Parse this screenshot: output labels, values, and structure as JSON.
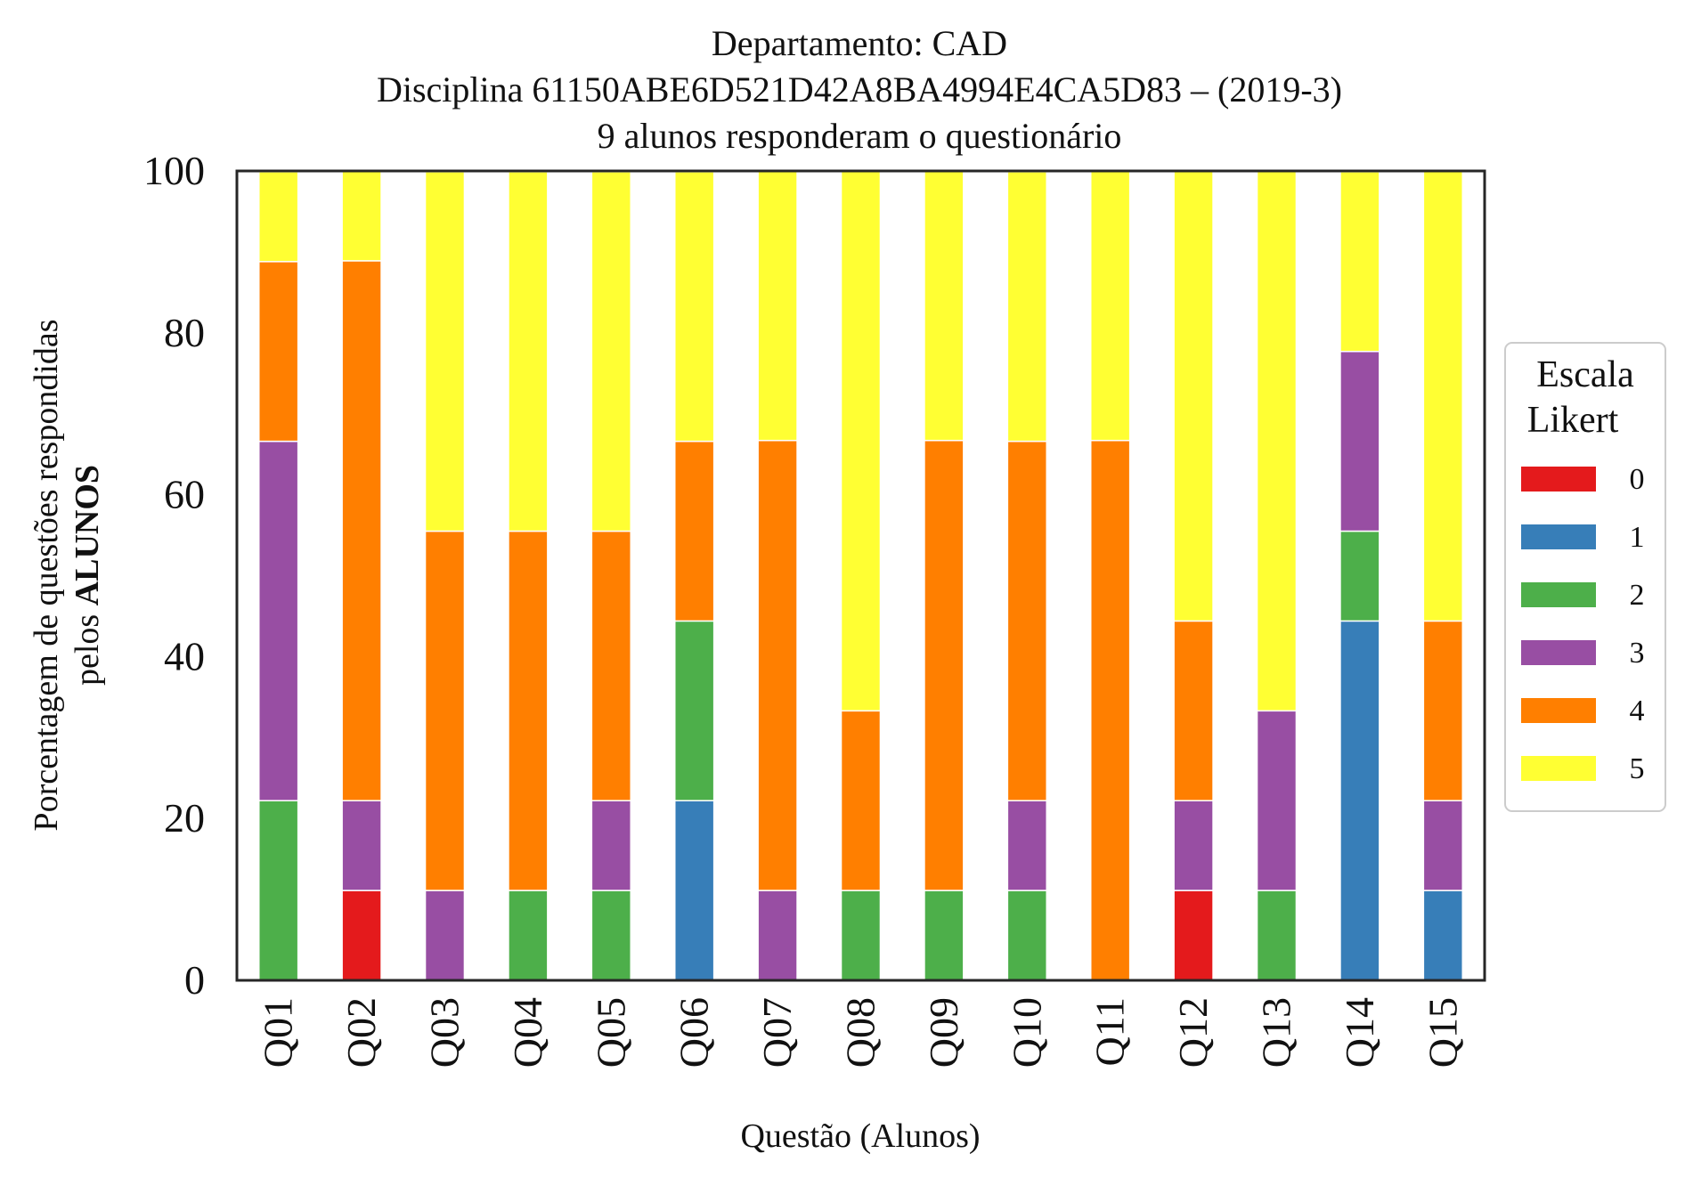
{
  "chart_data": {
    "type": "bar",
    "stacked": true,
    "title_lines": [
      "Departamento: CAD",
      "Disciplina 61150ABE6D521D42A8BA4994E4CA5D83 – (2019-3)",
      "9 alunos responderam o questionário"
    ],
    "xlabel": "Questão (Alunos)",
    "ylabel_line1": "Porcentagem de questões respondidas",
    "ylabel_line2_prefix": "pelos ",
    "ylabel_line2_bold": "ALUNOS",
    "ylim": [
      0,
      100
    ],
    "yticks": [
      "0",
      "20",
      "40",
      "60",
      "80",
      "100"
    ],
    "grid": false,
    "legend": {
      "title_line1": "Escala",
      "title_line2": "Likert",
      "position": "right"
    },
    "categories": [
      "Q01",
      "Q02",
      "Q03",
      "Q04",
      "Q05",
      "Q06",
      "Q07",
      "Q08",
      "Q09",
      "Q10",
      "Q11",
      "Q12",
      "Q13",
      "Q14",
      "Q15"
    ],
    "series": [
      {
        "name": "0",
        "color": "#e41a1c",
        "values": [
          0,
          11.1,
          0,
          0,
          0,
          0,
          0,
          0,
          0,
          0,
          0,
          11.1,
          0,
          0,
          0
        ]
      },
      {
        "name": "1",
        "color": "#377eb8",
        "values": [
          0,
          0,
          0,
          0,
          0,
          22.2,
          0,
          0,
          0,
          0,
          0,
          0,
          0,
          44.4,
          11.1
        ]
      },
      {
        "name": "2",
        "color": "#4daf4a",
        "values": [
          22.2,
          0,
          0,
          11.1,
          11.1,
          22.2,
          0,
          11.1,
          11.1,
          11.1,
          0,
          0,
          11.1,
          11.1,
          0
        ]
      },
      {
        "name": "3",
        "color": "#984ea3",
        "values": [
          44.4,
          11.1,
          11.1,
          0,
          11.1,
          0,
          11.1,
          0,
          0,
          11.1,
          0,
          11.1,
          22.2,
          22.2,
          11.1
        ]
      },
      {
        "name": "4",
        "color": "#ff7f00",
        "values": [
          22.2,
          66.7,
          44.4,
          44.4,
          33.3,
          22.2,
          55.6,
          22.2,
          55.6,
          44.4,
          66.7,
          22.2,
          0,
          0,
          22.2
        ]
      },
      {
        "name": "5",
        "color": "#ffff33",
        "values": [
          11.1,
          11.1,
          44.4,
          44.4,
          44.4,
          33.3,
          33.3,
          66.7,
          33.3,
          33.3,
          33.3,
          55.6,
          66.7,
          22.2,
          55.6
        ]
      }
    ]
  }
}
